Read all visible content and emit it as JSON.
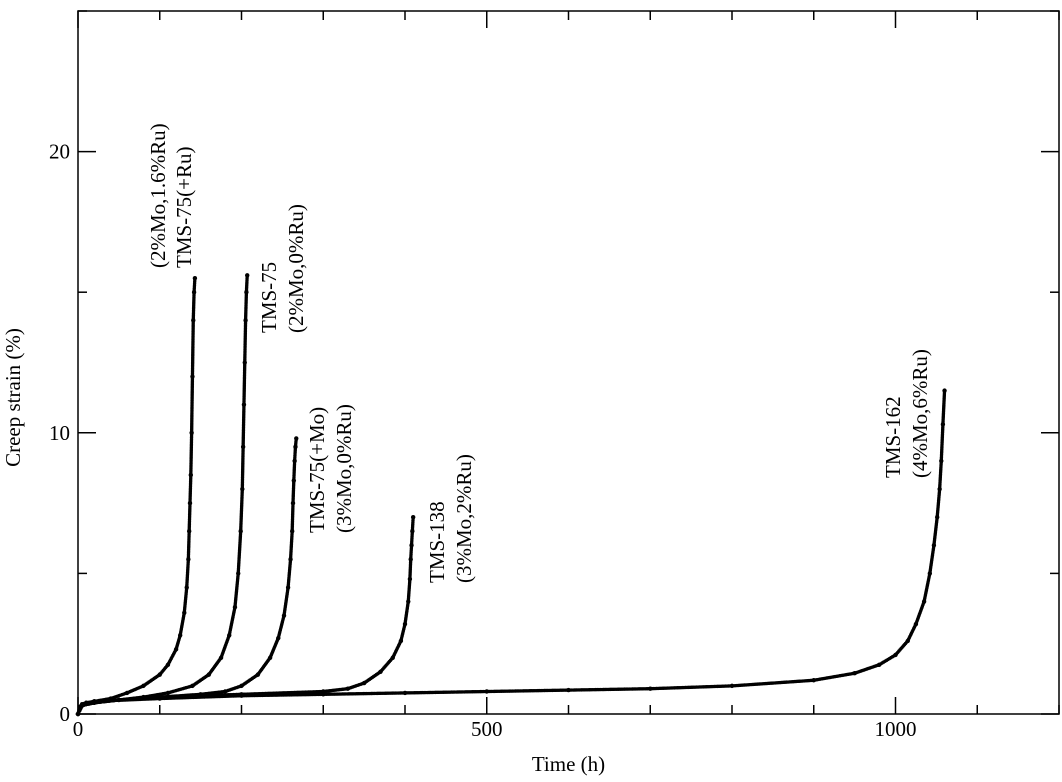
{
  "chart_data": {
    "type": "scatter",
    "title": "",
    "xlabel": "Time (h)",
    "ylabel": "Creep strain (%)",
    "xlim": [
      0,
      1200
    ],
    "ylim": [
      0,
      25
    ],
    "x_ticks": [
      0,
      500,
      1000
    ],
    "y_ticks": [
      0,
      10,
      20
    ],
    "x_minor_step": 100,
    "y_minor_step": 5,
    "grid": false,
    "legend": "none",
    "mark_color": "#000000",
    "series": [
      {
        "name": "TMS-75(+Ru)",
        "annotation": [
          "TMS-75(+Ru)",
          "(2%Mo,1.6%Ru)"
        ],
        "x": [
          0,
          2,
          5,
          10,
          20,
          40,
          60,
          80,
          100,
          110,
          120,
          125,
          130,
          133,
          135,
          136,
          137,
          138,
          139,
          140,
          141,
          142,
          143
        ],
        "y": [
          0,
          0.25,
          0.35,
          0.4,
          0.45,
          0.55,
          0.75,
          1.0,
          1.4,
          1.75,
          2.3,
          2.8,
          3.6,
          4.5,
          5.5,
          6.5,
          7.5,
          8.5,
          10.0,
          12.0,
          14.0,
          15.0,
          15.5
        ]
      },
      {
        "name": "TMS-75",
        "annotation": [
          "TMS-75",
          "(2%Mo,0%Ru)"
        ],
        "x": [
          0,
          5,
          20,
          50,
          80,
          110,
          140,
          160,
          175,
          185,
          192,
          196,
          199,
          201,
          202,
          203,
          204,
          205,
          206,
          207
        ],
        "y": [
          0,
          0.3,
          0.4,
          0.5,
          0.6,
          0.75,
          1.0,
          1.4,
          2.0,
          2.8,
          3.8,
          5.0,
          6.5,
          8.0,
          9.5,
          11.0,
          12.5,
          14.0,
          15.0,
          15.6
        ]
      },
      {
        "name": "TMS-75(+Mo)",
        "annotation": [
          "TMS-75(+Mo)",
          "(3%Mo,0%Ru)"
        ],
        "x": [
          0,
          5,
          20,
          50,
          100,
          150,
          180,
          200,
          220,
          235,
          245,
          252,
          257,
          260,
          262,
          263,
          264,
          265,
          266,
          267
        ],
        "y": [
          0,
          0.3,
          0.4,
          0.5,
          0.6,
          0.7,
          0.8,
          1.0,
          1.4,
          2.0,
          2.7,
          3.5,
          4.5,
          5.5,
          6.5,
          7.5,
          8.3,
          9.0,
          9.5,
          9.8
        ]
      },
      {
        "name": "TMS-138",
        "annotation": [
          "TMS-138",
          "(3%Mo,2%Ru)"
        ],
        "x": [
          0,
          5,
          20,
          50,
          100,
          200,
          300,
          330,
          350,
          370,
          385,
          395,
          400,
          404,
          406,
          407,
          408,
          409,
          410
        ],
        "y": [
          0,
          0.3,
          0.4,
          0.5,
          0.6,
          0.7,
          0.8,
          0.9,
          1.1,
          1.5,
          2.0,
          2.6,
          3.2,
          4.0,
          4.8,
          5.5,
          6.0,
          6.5,
          7.0
        ]
      },
      {
        "name": "TMS-162",
        "annotation": [
          "TMS-162",
          "(4%Mo,6%Ru)"
        ],
        "x": [
          0,
          5,
          20,
          100,
          200,
          300,
          400,
          500,
          600,
          700,
          800,
          900,
          950,
          980,
          1000,
          1015,
          1025,
          1035,
          1042,
          1047,
          1051,
          1054,
          1056,
          1058,
          1060
        ],
        "y": [
          0,
          0.3,
          0.45,
          0.55,
          0.65,
          0.7,
          0.75,
          0.8,
          0.85,
          0.9,
          1.0,
          1.2,
          1.45,
          1.75,
          2.1,
          2.6,
          3.2,
          4.0,
          5.0,
          6.0,
          7.0,
          8.0,
          9.0,
          10.3,
          11.5
        ]
      }
    ]
  }
}
